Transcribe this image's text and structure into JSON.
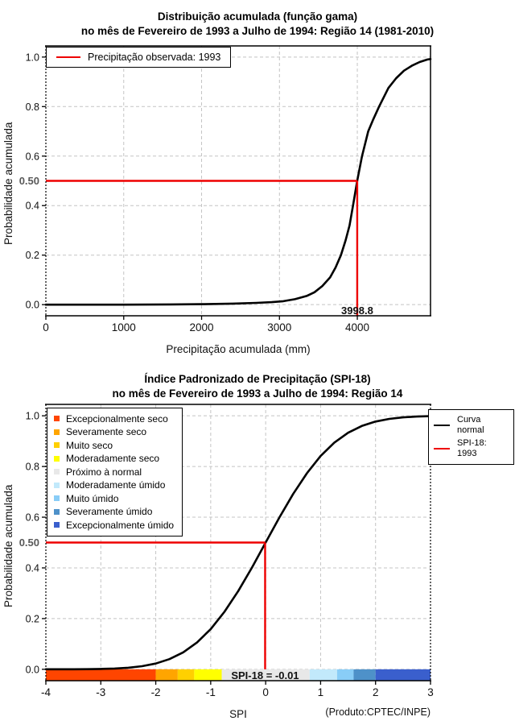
{
  "figure": {
    "background": "#FFFFFF"
  },
  "chart_data": [
    {
      "type": "line",
      "title": "Distribuição acumulada (função gama)",
      "subtitle": "no mês de Fevereiro de 1993 a Julho de 1994: Região 14 (1981-2010)",
      "xlabel": "Precipitação acumulada (mm)",
      "ylabel": "Probabilidade acumulada",
      "xlim": [
        0,
        4940
      ],
      "ylim": [
        0,
        1
      ],
      "grid": true,
      "xticks": [
        0,
        1000,
        2000,
        3000,
        4000
      ],
      "yticks": [
        {
          "v": 0.0,
          "label": "0.0"
        },
        {
          "v": 0.2,
          "label": "0.2"
        },
        {
          "v": 0.4,
          "label": "0.4"
        },
        {
          "v": 0.5,
          "label": "0.50",
          "bold": true,
          "tick": false,
          "grid": false
        },
        {
          "v": 0.6,
          "label": "0.6"
        },
        {
          "v": 0.8,
          "label": "0.8"
        },
        {
          "v": 1.0,
          "label": "1.0"
        }
      ],
      "legend": [
        {
          "label": "Precipitação observada: 1993",
          "color": "#EE0000",
          "symbol": "line"
        }
      ],
      "series": [
        {
          "name": "distribuicao-gama-acumulada",
          "color": "#000000",
          "points": [
            [
              0,
              0
            ],
            [
              600,
              0
            ],
            [
              1000,
              0
            ],
            [
              1600,
              0.001
            ],
            [
              2000,
              0.002
            ],
            [
              2400,
              0.004
            ],
            [
              2700,
              0.007
            ],
            [
              2900,
              0.01
            ],
            [
              3050,
              0.014
            ],
            [
              3200,
              0.022
            ],
            [
              3350,
              0.035
            ],
            [
              3450,
              0.05
            ],
            [
              3550,
              0.075
            ],
            [
              3650,
              0.11
            ],
            [
              3720,
              0.15
            ],
            [
              3790,
              0.2
            ],
            [
              3850,
              0.26
            ],
            [
              3900,
              0.32
            ],
            [
              3945,
              0.4
            ],
            [
              3999,
              0.5
            ],
            [
              4060,
              0.6
            ],
            [
              4140,
              0.7
            ],
            [
              4200,
              0.745
            ],
            [
              4280,
              0.8
            ],
            [
              4400,
              0.875
            ],
            [
              4500,
              0.915
            ],
            [
              4600,
              0.945
            ],
            [
              4700,
              0.965
            ],
            [
              4800,
              0.98
            ],
            [
              4900,
              0.99
            ],
            [
              4940,
              0.992
            ]
          ]
        }
      ],
      "crosshair": {
        "x": 3998.8,
        "y": 0.5,
        "label": "3998.8",
        "color": "#EE0000",
        "drop_to": "frame_bottom"
      }
    },
    {
      "type": "line",
      "title": "Índice Padronizado de Precipitação (SPI-18)",
      "subtitle": "no mês de Fevereiro de 1993 a Julho de 1994: Região 14",
      "xlabel": "SPI",
      "ylabel": "Probabilidade acumulada",
      "xlim": [
        -4,
        3
      ],
      "ylim": [
        0,
        1
      ],
      "grid": true,
      "xticks": [
        -4,
        -3,
        -2,
        -1,
        0,
        1,
        2,
        3
      ],
      "yticks": [
        {
          "v": 0.0,
          "label": "0.0"
        },
        {
          "v": 0.2,
          "label": "0.2"
        },
        {
          "v": 0.4,
          "label": "0.4"
        },
        {
          "v": 0.5,
          "label": "0.50",
          "bold": true,
          "tick": false,
          "grid": false
        },
        {
          "v": 0.6,
          "label": "0.6"
        },
        {
          "v": 0.8,
          "label": "0.8"
        },
        {
          "v": 1.0,
          "label": "1.0"
        }
      ],
      "legend_right": [
        {
          "label": "Curva\nnormal",
          "color": "#000000",
          "symbol": "line"
        },
        {
          "label": "SPI-18: 1993",
          "color": "#EE0000",
          "symbol": "line"
        }
      ],
      "categories": [
        {
          "label": "Excepcionalmente seco",
          "color": "#FF4500",
          "from": -4,
          "to": -2
        },
        {
          "label": "Severamente seco",
          "color": "#FFA500",
          "from": -2,
          "to": -1.6
        },
        {
          "label": "Muito seco",
          "color": "#FFD000",
          "from": -1.6,
          "to": -1.3
        },
        {
          "label": "Moderadamente seco",
          "color": "#FFFF00",
          "from": -1.3,
          "to": -0.8
        },
        {
          "label": "Próximo à normal",
          "color": "#E8E8E8",
          "from": -0.8,
          "to": 0.8
        },
        {
          "label": "Moderadamente úmido",
          "color": "#C2E9FB",
          "from": 0.8,
          "to": 1.3
        },
        {
          "label": "Muito úmido",
          "color": "#89CDF7",
          "from": 1.3,
          "to": 1.6
        },
        {
          "label": "Severamente úmido",
          "color": "#4E91C9",
          "from": 1.6,
          "to": 2
        },
        {
          "label": "Excepcionalmente úmido",
          "color": "#3A5FCD",
          "from": 2,
          "to": 3
        }
      ],
      "series": [
        {
          "name": "curva-normal",
          "color": "#000000",
          "points": [
            [
              -4,
              0.0
            ],
            [
              -3.75,
              0.0001
            ],
            [
              -3.5,
              0.0002
            ],
            [
              -3.25,
              0.0006
            ],
            [
              -3,
              0.0013
            ],
            [
              -2.75,
              0.003
            ],
            [
              -2.5,
              0.0062
            ],
            [
              -2.25,
              0.0122
            ],
            [
              -2,
              0.0228
            ],
            [
              -1.75,
              0.0401
            ],
            [
              -1.5,
              0.0668
            ],
            [
              -1.25,
              0.1056
            ],
            [
              -1,
              0.1587
            ],
            [
              -0.75,
              0.2266
            ],
            [
              -0.5,
              0.3085
            ],
            [
              -0.25,
              0.4013
            ],
            [
              0,
              0.5
            ],
            [
              0.25,
              0.5987
            ],
            [
              0.5,
              0.6915
            ],
            [
              0.75,
              0.7734
            ],
            [
              1,
              0.8413
            ],
            [
              1.25,
              0.8944
            ],
            [
              1.5,
              0.9332
            ],
            [
              1.75,
              0.9599
            ],
            [
              2,
              0.9772
            ],
            [
              2.25,
              0.9878
            ],
            [
              2.5,
              0.9938
            ],
            [
              2.75,
              0.997
            ],
            [
              3,
              0.9987
            ]
          ]
        }
      ],
      "crosshair": {
        "x": -0.01,
        "y": 0.5,
        "label": "SPI-18 = -0.01",
        "color": "#EE0000",
        "drop_to": "zero"
      },
      "footnote": "(Produto:CPTEC/INPE)"
    }
  ]
}
